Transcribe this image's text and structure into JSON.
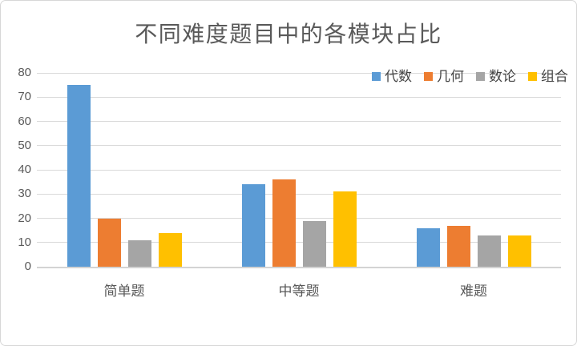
{
  "title": "不同难度题目中的各模块占比",
  "palette": {
    "grid_color": "#d9d9d9",
    "axis_color": "#d3d3d3",
    "text_color": "#595959",
    "frame_border_color": "#d7d7d7",
    "background_color": "#ffffff"
  },
  "chart_data": {
    "type": "bar",
    "title": "不同难度题目中的各模块占比",
    "categories": [
      {
        "label": "简单题",
        "slug": "easy"
      },
      {
        "label": "中等题",
        "slug": "medium"
      },
      {
        "label": "难题",
        "slug": "hard"
      }
    ],
    "series": [
      {
        "name": "代数",
        "slug": "algebra",
        "color": "#5B9BD5",
        "values": [
          75,
          34,
          16
        ]
      },
      {
        "name": "几何",
        "slug": "geometry",
        "color": "#ED7D31",
        "values": [
          20,
          36,
          17
        ]
      },
      {
        "name": "数论",
        "slug": "number-theory",
        "color": "#A5A5A5",
        "values": [
          11,
          19,
          13
        ]
      },
      {
        "name": "组合",
        "slug": "combinatorics",
        "color": "#FFC000",
        "values": [
          14,
          31,
          13
        ]
      }
    ],
    "xlabel": "",
    "ylabel": "",
    "ylim": [
      0,
      80
    ],
    "yticks": [
      0,
      10,
      20,
      30,
      40,
      50,
      60,
      70,
      80
    ],
    "grid": true,
    "legend_position": "top-right"
  }
}
